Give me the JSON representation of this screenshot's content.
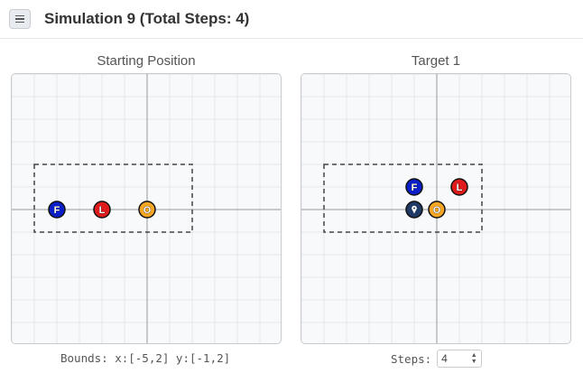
{
  "header": {
    "title": "Simulation 9 (Total Steps: 4)",
    "menu_icon": "hamburger-menu-icon"
  },
  "panels": [
    {
      "title": "Starting Position",
      "bounds_rect": {
        "x_min": -5,
        "x_max": 2,
        "y_min": -1,
        "y_max": 2
      },
      "pieces": [
        {
          "label": "F",
          "x": -4,
          "y": 0,
          "color": "#0a1fc9"
        },
        {
          "label": "L",
          "x": -2,
          "y": 0,
          "color": "#e01b1b"
        },
        {
          "label": "O",
          "x": 0,
          "y": 0,
          "color": "#f5a623"
        }
      ]
    },
    {
      "title": "Target 1",
      "bounds_rect": {
        "x_min": -5,
        "x_max": 2,
        "y_min": -1,
        "y_max": 2
      },
      "pieces": [
        {
          "label": "F",
          "x": -1,
          "y": 1,
          "color": "#0a1fc9"
        },
        {
          "label": "L",
          "x": 1,
          "y": 1,
          "color": "#e01b1b"
        },
        {
          "label": "O",
          "x": 0,
          "y": 0,
          "color": "#f5a623"
        },
        {
          "label": "",
          "x": -1,
          "y": 0,
          "color": "#1f3a66",
          "marker": "pin"
        }
      ]
    }
  ],
  "footer": {
    "bounds_text": "Bounds: x:[-5,2] y:[-1,2]",
    "steps_label": "Steps:",
    "steps_value": "4"
  }
}
